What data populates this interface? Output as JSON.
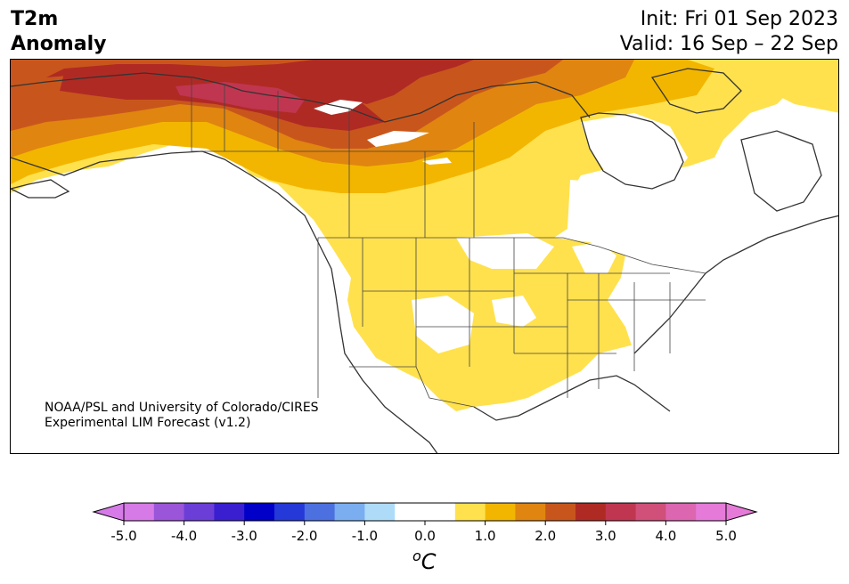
{
  "header": {
    "title_line1": "T2m",
    "title_line2": "Anomaly",
    "init": "Init: Fri 01 Sep 2023",
    "valid": "Valid: 16 Sep – 22 Sep"
  },
  "map": {
    "credit_line1": "NOAA/PSL and University of Colorado/CIRES",
    "credit_line2": "Experimental LIM Forecast (v1.2)"
  },
  "colorbar": {
    "unit_base": "C",
    "unit_sup": "o",
    "ticks": [
      "-5.0",
      "-4.0",
      "-3.0",
      "-2.0",
      "-1.0",
      "0.0",
      "1.0",
      "2.0",
      "3.0",
      "4.0",
      "5.0"
    ],
    "colors": [
      "#d67ae8",
      "#9a55d8",
      "#6b3ed8",
      "#3a1fd0",
      "#0000c8",
      "#2538d8",
      "#4d70e0",
      "#7aaef0",
      "#aedcf8",
      "#ffffff",
      "#ffffff",
      "#ffe14d",
      "#f2b600",
      "#e08510",
      "#c8561c",
      "#b02a24",
      "#c03650",
      "#d0507a",
      "#dc66b0",
      "#e67ad8"
    ],
    "over_color": "#e67ad8",
    "under_color": "#d67ae8"
  }
}
